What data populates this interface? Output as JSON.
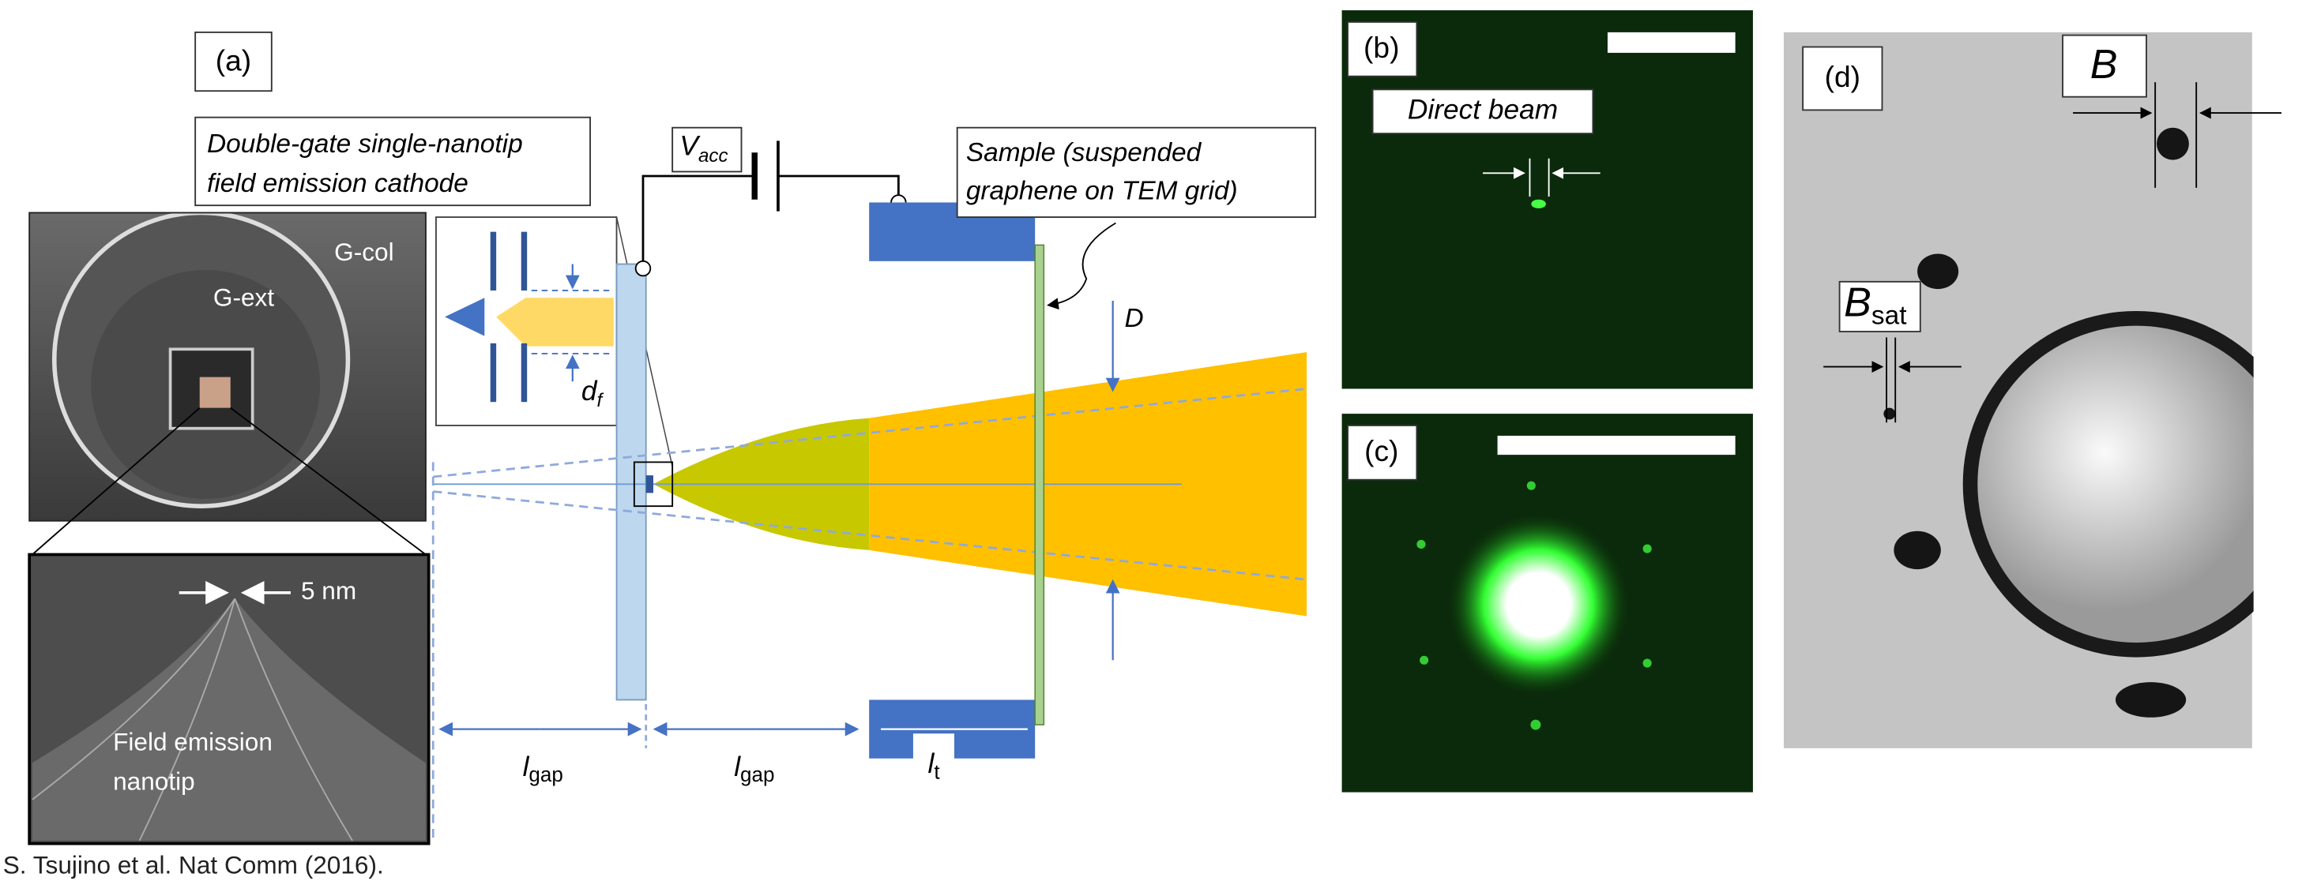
{
  "panel_a": {
    "label": "(a)",
    "cathode_label": [
      "Double-gate single-nanotip",
      "field emission cathode"
    ],
    "g_col": "G-col",
    "g_ext": "G-ext",
    "tip_size": "5 nm",
    "nanotip": [
      "Field emission",
      "nanotip"
    ],
    "v_acc": {
      "base": "V",
      "sub": "acc"
    },
    "d_f": {
      "base": "d",
      "sub": "f"
    },
    "sample": [
      "Sample (suspended",
      "graphene on TEM grid)"
    ],
    "beam_size": "D",
    "l_gap_1": {
      "base": "l",
      "sub": "gap"
    },
    "l_gap_2": {
      "base": "l",
      "sub": "gap"
    },
    "l_t": {
      "base": "l",
      "sub": "t"
    }
  },
  "panel_b": {
    "label": "(b)",
    "direct_beam": "Direct beam"
  },
  "panel_c": {
    "label": "(c)"
  },
  "panel_d": {
    "label": "(d)",
    "b": "B",
    "b_sat": {
      "base": "B",
      "sub": "sat"
    }
  },
  "citation": "S. Tsujino et al. Nat Comm (2016)."
}
